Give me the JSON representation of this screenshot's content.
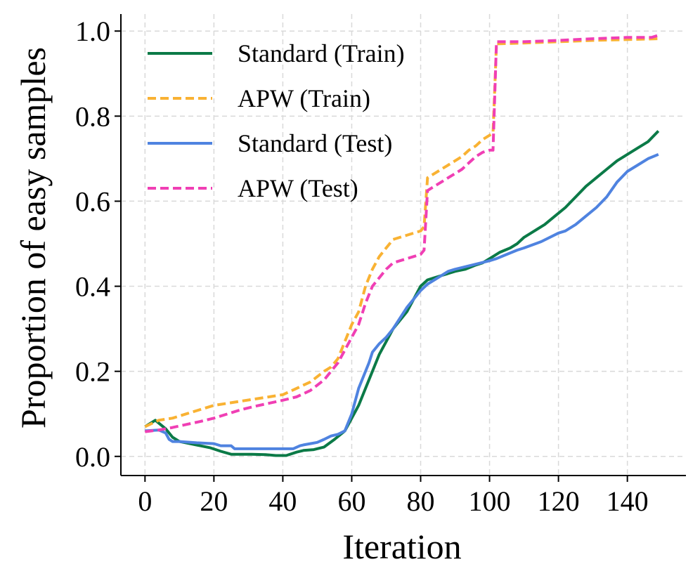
{
  "chart_data": {
    "type": "line",
    "title": "",
    "xlabel": "Iteration",
    "ylabel": "Proportion of easy samples",
    "xlim": [
      -7,
      157
    ],
    "ylim": [
      -0.045,
      1.04
    ],
    "xticks": [
      0,
      20,
      40,
      60,
      80,
      100,
      120,
      140
    ],
    "xtick_labels": [
      "0",
      "20",
      "40",
      "60",
      "80",
      "100",
      "120",
      "140"
    ],
    "yticks": [
      0.0,
      0.2,
      0.4,
      0.6,
      0.8,
      1.0
    ],
    "ytick_labels": [
      "0.0",
      "0.2",
      "0.4",
      "0.6",
      "0.8",
      "1.0"
    ],
    "grid": true,
    "legend_position": "top-left",
    "series": [
      {
        "name": "Standard (Train)",
        "color": "#0b7a47",
        "dash": "solid",
        "x": [
          0,
          3,
          6,
          8,
          10,
          13,
          16,
          19,
          22,
          25,
          28,
          31,
          35,
          38,
          41,
          44,
          46,
          49,
          52,
          55,
          58,
          60,
          62,
          64,
          66,
          68,
          70,
          72,
          74,
          76,
          78,
          80,
          82,
          84,
          86,
          88,
          90,
          93,
          96,
          98,
          100,
          101,
          103,
          106,
          108,
          110,
          113,
          116,
          119,
          122,
          125,
          128,
          131,
          134,
          137,
          140,
          143,
          146,
          149
        ],
        "y": [
          0.07,
          0.085,
          0.065,
          0.045,
          0.035,
          0.03,
          0.025,
          0.02,
          0.012,
          0.005,
          0.005,
          0.005,
          0.004,
          0.002,
          0.002,
          0.01,
          0.014,
          0.016,
          0.022,
          0.04,
          0.06,
          0.09,
          0.12,
          0.16,
          0.2,
          0.24,
          0.27,
          0.3,
          0.32,
          0.34,
          0.37,
          0.4,
          0.415,
          0.42,
          0.425,
          0.43,
          0.435,
          0.44,
          0.45,
          0.455,
          0.465,
          0.47,
          0.48,
          0.49,
          0.5,
          0.515,
          0.53,
          0.545,
          0.565,
          0.585,
          0.61,
          0.635,
          0.655,
          0.675,
          0.695,
          0.71,
          0.725,
          0.74,
          0.765
        ]
      },
      {
        "name": "APW (Train)",
        "color": "#f9b233",
        "dash": "dashed",
        "x": [
          0,
          4,
          8,
          12,
          16,
          20,
          24,
          28,
          32,
          36,
          40,
          44,
          48,
          52,
          54,
          56,
          58,
          60,
          62,
          64,
          66,
          68,
          70,
          72,
          74,
          76,
          78,
          80,
          81,
          82,
          84,
          86,
          88,
          90,
          92,
          94,
          96,
          98,
          100,
          101,
          102,
          110,
          120,
          130,
          140,
          149
        ],
        "y": [
          0.07,
          0.085,
          0.09,
          0.1,
          0.11,
          0.12,
          0.125,
          0.13,
          0.135,
          0.14,
          0.145,
          0.16,
          0.175,
          0.2,
          0.21,
          0.23,
          0.27,
          0.31,
          0.34,
          0.4,
          0.44,
          0.47,
          0.49,
          0.51,
          0.515,
          0.52,
          0.525,
          0.53,
          0.54,
          0.655,
          0.665,
          0.675,
          0.685,
          0.695,
          0.705,
          0.72,
          0.73,
          0.745,
          0.755,
          0.76,
          0.97,
          0.972,
          0.975,
          0.978,
          0.98,
          0.982
        ]
      },
      {
        "name": "Standard (Test)",
        "color": "#4f83e0",
        "dash": "solid",
        "x": [
          0,
          4,
          6,
          7,
          8,
          10,
          15,
          20,
          22,
          25,
          26,
          30,
          35,
          40,
          43,
          45,
          46,
          48,
          50,
          52,
          54,
          56,
          58,
          60,
          62,
          64,
          65,
          66,
          68,
          70,
          72,
          74,
          76,
          78,
          80,
          82,
          84,
          86,
          88,
          90,
          95,
          100,
          102,
          105,
          108,
          110,
          115,
          120,
          122,
          125,
          128,
          131,
          134,
          137,
          140,
          143,
          146,
          149
        ],
        "y": [
          0.06,
          0.062,
          0.055,
          0.04,
          0.035,
          0.035,
          0.032,
          0.03,
          0.025,
          0.025,
          0.018,
          0.018,
          0.018,
          0.018,
          0.018,
          0.025,
          0.027,
          0.03,
          0.033,
          0.04,
          0.048,
          0.052,
          0.06,
          0.1,
          0.16,
          0.2,
          0.22,
          0.245,
          0.265,
          0.28,
          0.3,
          0.325,
          0.35,
          0.37,
          0.39,
          0.405,
          0.415,
          0.425,
          0.435,
          0.44,
          0.45,
          0.46,
          0.465,
          0.475,
          0.485,
          0.49,
          0.505,
          0.525,
          0.53,
          0.545,
          0.565,
          0.585,
          0.61,
          0.645,
          0.67,
          0.685,
          0.7,
          0.71
        ]
      },
      {
        "name": "APW (Test)",
        "color": "#f03fb4",
        "dash": "dashed",
        "x": [
          0,
          4,
          8,
          12,
          16,
          20,
          24,
          28,
          32,
          36,
          40,
          44,
          48,
          52,
          54,
          56,
          58,
          60,
          62,
          64,
          66,
          68,
          70,
          72,
          74,
          76,
          78,
          80,
          81,
          82,
          84,
          86,
          88,
          90,
          92,
          94,
          96,
          98,
          100,
          101,
          102,
          110,
          120,
          130,
          140,
          147,
          149
        ],
        "y": [
          0.058,
          0.062,
          0.068,
          0.075,
          0.082,
          0.09,
          0.1,
          0.11,
          0.118,
          0.125,
          0.132,
          0.14,
          0.155,
          0.18,
          0.2,
          0.22,
          0.25,
          0.28,
          0.31,
          0.36,
          0.4,
          0.42,
          0.44,
          0.455,
          0.46,
          0.465,
          0.47,
          0.475,
          0.485,
          0.625,
          0.635,
          0.645,
          0.655,
          0.665,
          0.675,
          0.69,
          0.705,
          0.715,
          0.72,
          0.72,
          0.975,
          0.975,
          0.978,
          0.982,
          0.985,
          0.985,
          0.99
        ]
      }
    ]
  }
}
